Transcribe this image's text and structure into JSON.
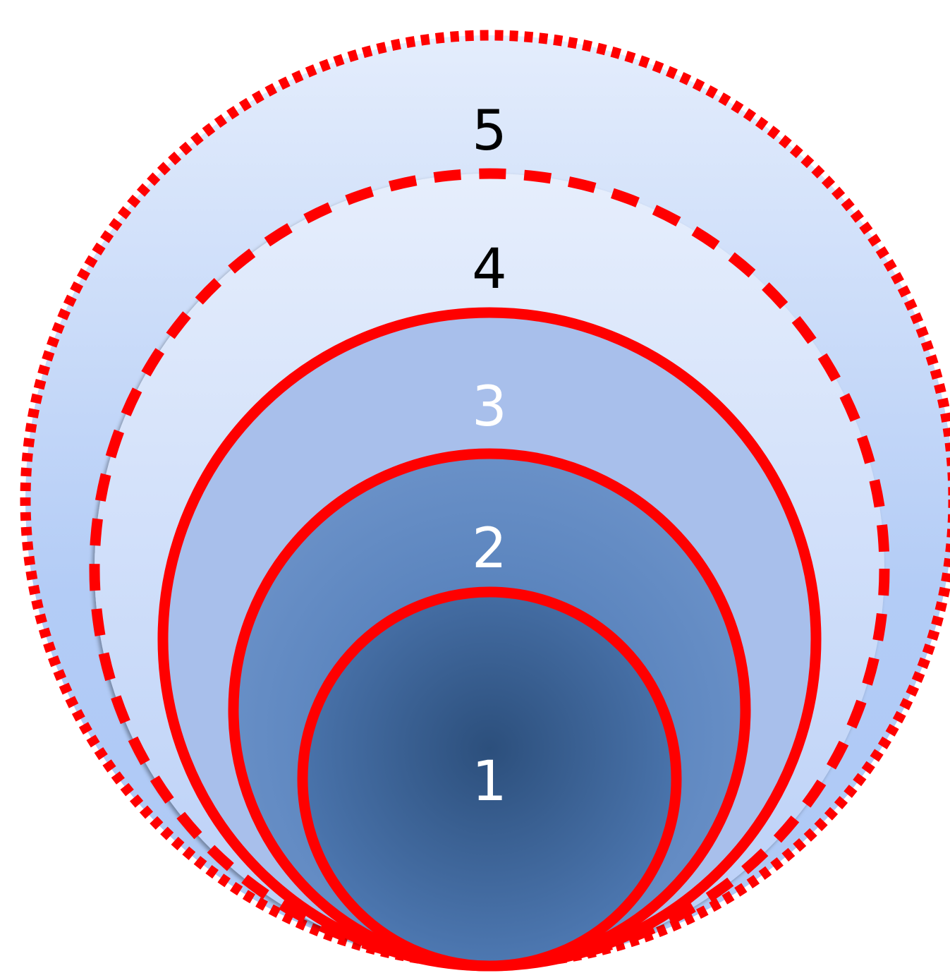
{
  "diagram": {
    "levels": [
      {
        "label": "1",
        "label_color": "#ffffff",
        "border": "solid"
      },
      {
        "label": "2",
        "label_color": "#ffffff",
        "border": "solid"
      },
      {
        "label": "3",
        "label_color": "#ffffff",
        "border": "solid"
      },
      {
        "label": "4",
        "label_color": "#000000",
        "border": "dashed"
      },
      {
        "label": "5",
        "label_color": "#000000",
        "border": "dotted"
      }
    ],
    "colors": {
      "border": "#ff0000",
      "level_1_center": "#2c4f7c",
      "level_1_edge": "#4f7ab4",
      "level_2_center": "#4a76b2",
      "level_2_edge": "#6a91c8",
      "level_3_fill": "#a8bfeb",
      "level_4_top": "#e6eefc",
      "level_4_bottom": "#b9cff7",
      "level_5_top": "#e4edfc",
      "level_5_bottom": "#adc8f5"
    }
  }
}
